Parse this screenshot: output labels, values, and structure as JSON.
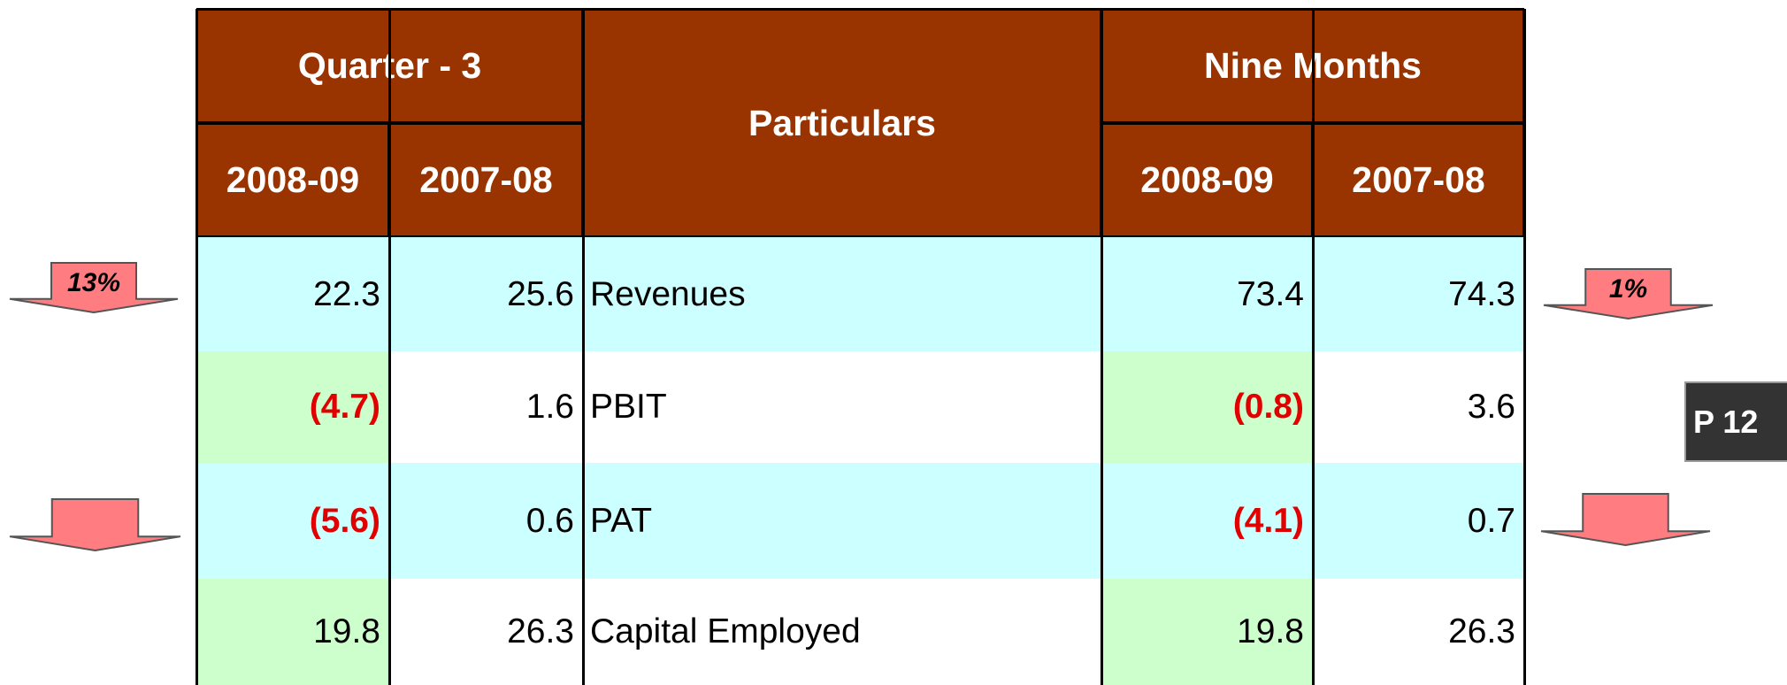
{
  "table": {
    "group_headers": [
      "Quarter - 3",
      "Particulars",
      "Nine Months"
    ],
    "year_headers": [
      "2008-09",
      "2007-08",
      "2008-09",
      "2007-08"
    ],
    "rows": [
      [
        "22.3",
        "25.6",
        "Revenues",
        "73.4",
        "74.3"
      ],
      [
        "(4.7)",
        "1.6",
        "PBIT",
        "(0.8)",
        "3.6"
      ],
      [
        "(5.6)",
        "0.6",
        "PAT",
        "(4.1)",
        "0.7"
      ],
      [
        "19.8",
        "26.3",
        "Capital Employed",
        "19.8",
        "26.3"
      ]
    ]
  },
  "indicators": {
    "left": [
      "13%",
      ""
    ],
    "right": [
      "1%",
      ""
    ]
  },
  "page_badge": "P 12"
}
